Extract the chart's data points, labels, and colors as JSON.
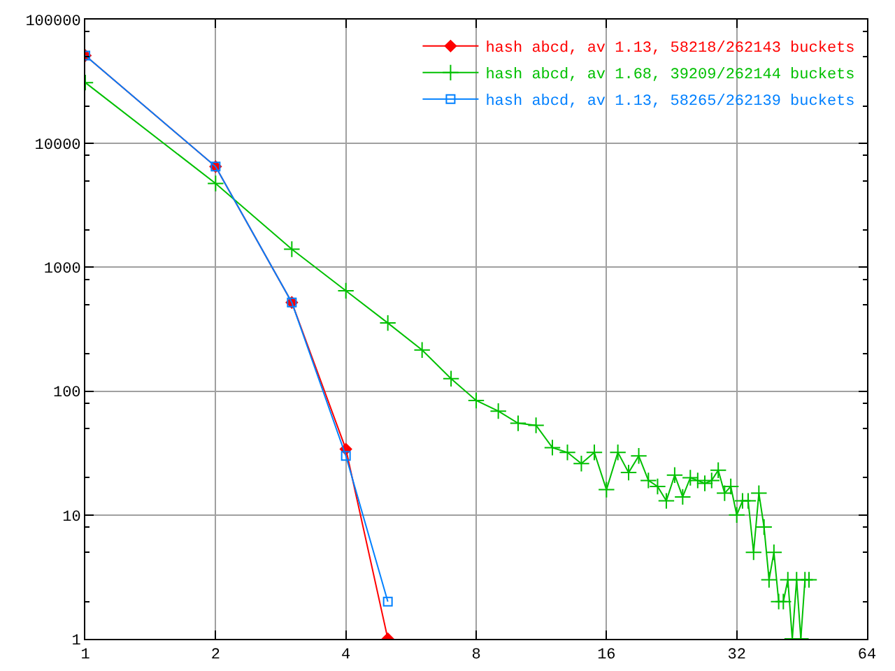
{
  "chart_data": {
    "type": "line",
    "series": [
      {
        "name": "hash abcd, av 1.13, 58218/262143 buckets",
        "color": "#ff0000",
        "marker": "diamond",
        "x": [
          1,
          2,
          3,
          4,
          5
        ],
        "values": [
          51200,
          6500,
          520,
          34,
          1
        ]
      },
      {
        "name": "hash abcd, av 1.68, 39209/262144 buckets",
        "color": "#00c000",
        "marker": "cross",
        "x": [
          1,
          2,
          3,
          4,
          5,
          6,
          7,
          8,
          9,
          10,
          11,
          12,
          13,
          14,
          15,
          16,
          17,
          18,
          19,
          20,
          21,
          22,
          23,
          24,
          25,
          26,
          27,
          28,
          29,
          30,
          31,
          32,
          33,
          34,
          35,
          36,
          37,
          38,
          39,
          40,
          41,
          42,
          43,
          44,
          45,
          46,
          47
        ],
        "values": [
          31000,
          4750,
          1400,
          646,
          355,
          215,
          126,
          84,
          69,
          55,
          53,
          35,
          32,
          26,
          32,
          16,
          32,
          22,
          30,
          19,
          17,
          13,
          21,
          14,
          20,
          19,
          18,
          19,
          23,
          15,
          17,
          10,
          13,
          13,
          5,
          15,
          8,
          3,
          5,
          2,
          2,
          3,
          1,
          3,
          1,
          3,
          3
        ]
      },
      {
        "name": "hash abcd, av 1.13, 58265/262139 buckets",
        "color": "#0080ff",
        "marker": "square",
        "x": [
          1,
          2,
          3,
          4,
          5
        ],
        "values": [
          51200,
          6500,
          520,
          30,
          2
        ]
      }
    ],
    "xlim": [
      1,
      64
    ],
    "xticks": [
      1,
      2,
      4,
      8,
      16,
      32,
      64
    ],
    "ylim": [
      1,
      100000
    ],
    "yticks": [
      1,
      {
        "value": 2,
        "label": null
      },
      {
        "value": 5,
        "label": null
      },
      {
        "value": 8,
        "label": null
      },
      10,
      {
        "value": 20,
        "label": null
      },
      {
        "value": 50,
        "label": null
      },
      {
        "value": 80,
        "label": null
      },
      100,
      {
        "value": 200,
        "label": null
      },
      {
        "value": 500,
        "label": null
      },
      {
        "value": 800,
        "label": null
      },
      1000,
      {
        "value": 2000,
        "label": null
      },
      {
        "value": 5000,
        "label": null
      },
      {
        "value": 8000,
        "label": null
      },
      10000,
      {
        "value": 20000,
        "label": null
      },
      {
        "value": 50000,
        "label": null
      },
      {
        "value": 80000,
        "label": null
      },
      100000
    ],
    "log": "xy",
    "grid": true,
    "legend": "top right"
  }
}
